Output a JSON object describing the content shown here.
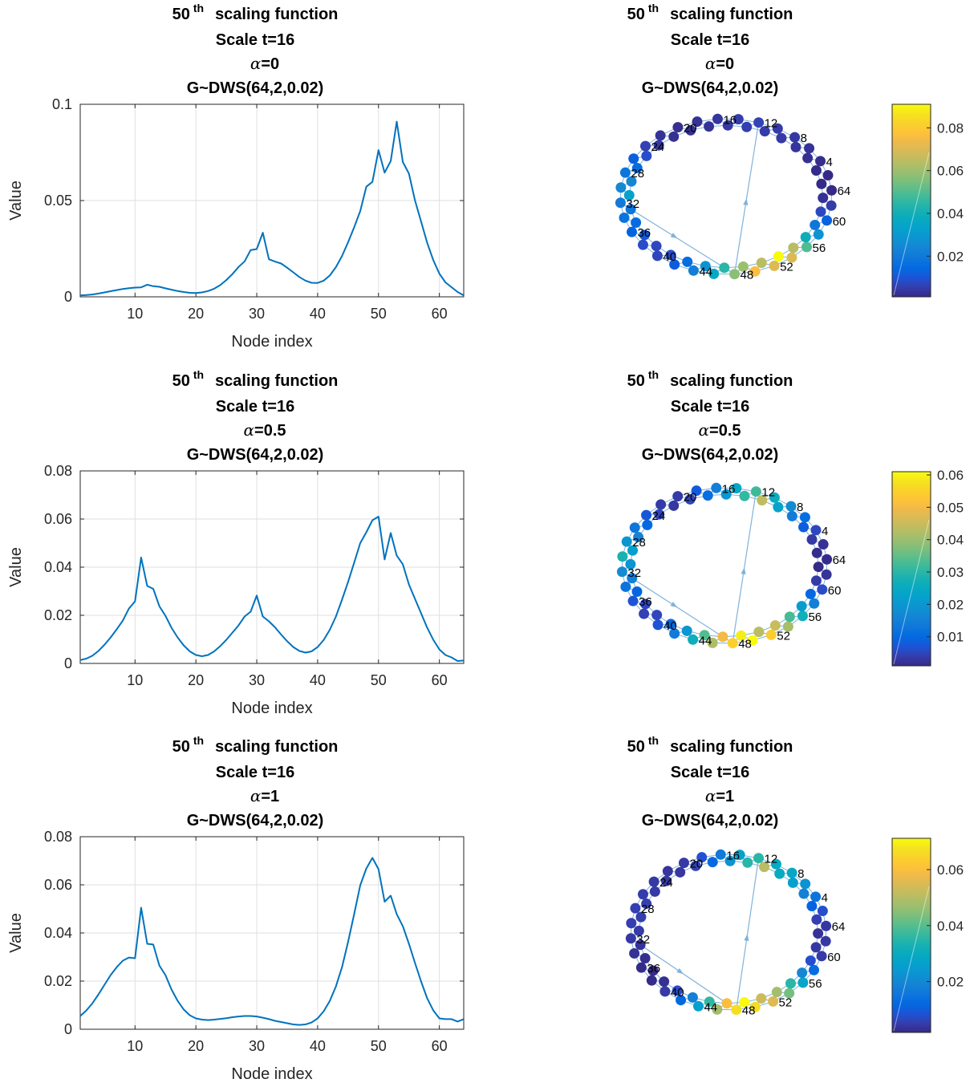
{
  "figure": {
    "rows": [
      {
        "title_lines": [
          "scaling function",
          "Scale t=16",
          "=0",
          "G~DWS(64,2,0.02)"
        ],
        "title_prefix": "50",
        "title_sup": "th",
        "alpha_symbol": "α",
        "alpha_value": "=0",
        "line_plot": {
          "title_prefix": "50",
          "title_sup": "th",
          "title_main": "scaling function",
          "title_scale": "Scale t=16",
          "alpha_symbol": "α",
          "alpha_value": "=0",
          "title_graph": "G~DWS(64,2,0.02)",
          "xlabel": "Node index",
          "ylabel": "Value",
          "yticks": [
            "0",
            "0.05",
            "0.1"
          ]
        },
        "graph_plot": {
          "title_prefix": "50",
          "title_sup": "th",
          "title_main": "scaling function",
          "title_scale": "Scale t=16",
          "alpha_symbol": "α",
          "alpha_value": "=0",
          "title_graph": "G~DWS(64,2,0.02)",
          "colorbar_ticks": [
            "0.02",
            "0.04",
            "0.06",
            "0.08"
          ]
        }
      },
      {
        "line_plot": {
          "title_prefix": "50",
          "title_sup": "th",
          "title_main": "scaling function",
          "title_scale": "Scale t=16",
          "alpha_symbol": "α",
          "alpha_value": "=0.5",
          "title_graph": "G~DWS(64,2,0.02)",
          "xlabel": "Node index",
          "ylabel": "Value",
          "yticks": [
            "0",
            "0.02",
            "0.04",
            "0.06",
            "0.08"
          ]
        },
        "graph_plot": {
          "title_prefix": "50",
          "title_sup": "th",
          "title_main": "scaling function",
          "title_scale": "Scale t=16",
          "alpha_symbol": "α",
          "alpha_value": "=0.5",
          "title_graph": "G~DWS(64,2,0.02)",
          "colorbar_ticks": [
            "0.01",
            "0.02",
            "0.03",
            "0.04",
            "0.05",
            "0.06"
          ]
        }
      },
      {
        "line_plot": {
          "title_prefix": "50",
          "title_sup": "th",
          "title_main": "scaling function",
          "title_scale": "Scale t=16",
          "alpha_symbol": "α",
          "alpha_value": "=1",
          "title_graph": "G~DWS(64,2,0.02)",
          "xlabel": "Node index",
          "ylabel": "Value",
          "yticks": [
            "0",
            "0.02",
            "0.04",
            "0.06",
            "0.08"
          ]
        },
        "graph_plot": {
          "title_prefix": "50",
          "title_sup": "th",
          "title_main": "scaling function",
          "title_scale": "Scale t=16",
          "alpha_symbol": "α",
          "alpha_value": "=1",
          "title_graph": "G~DWS(64,2,0.02)",
          "colorbar_ticks": [
            "0.02",
            "0.04",
            "0.06"
          ]
        }
      }
    ],
    "colors": {
      "line": "#0072bd",
      "edge": "#7fb3da",
      "axis": "#262626",
      "grid": "#dfdfdf"
    },
    "node_labels": [
      "4",
      "8",
      "12",
      "16",
      "20",
      "24",
      "28",
      "32",
      "36",
      "40",
      "44",
      "48",
      "52",
      "56",
      "60",
      "64"
    ]
  },
  "chart_data": [
    {
      "type": "line",
      "title": "50 th scaling function / Scale t=16 / α=0 / G~DWS(64,2,0.02)",
      "xlabel": "Node index",
      "ylabel": "Value",
      "xlim": [
        1,
        64
      ],
      "ylim": [
        0,
        0.1
      ],
      "grid": true,
      "xticks": [
        10,
        20,
        30,
        40,
        50,
        60
      ],
      "yticks": [
        0,
        0.05,
        0.1
      ],
      "x": [
        1,
        2,
        3,
        4,
        5,
        6,
        7,
        8,
        9,
        10,
        11,
        12,
        13,
        14,
        15,
        16,
        17,
        18,
        19,
        20,
        21,
        22,
        23,
        24,
        25,
        26,
        27,
        28,
        29,
        30,
        31,
        32,
        33,
        34,
        35,
        36,
        37,
        38,
        39,
        40,
        41,
        42,
        43,
        44,
        45,
        46,
        47,
        48,
        49,
        50,
        51,
        52,
        53,
        54,
        55,
        56,
        57,
        58,
        59,
        60,
        61,
        62,
        63,
        64
      ],
      "values": [
        0.0007,
        0.0009,
        0.0012,
        0.0017,
        0.0023,
        0.0029,
        0.0035,
        0.0041,
        0.0045,
        0.0048,
        0.0049,
        0.0063,
        0.0055,
        0.0052,
        0.0044,
        0.0037,
        0.003,
        0.0025,
        0.0021,
        0.002,
        0.0023,
        0.003,
        0.0042,
        0.0061,
        0.0087,
        0.0118,
        0.0155,
        0.0184,
        0.0243,
        0.0248,
        0.0333,
        0.0195,
        0.0183,
        0.0173,
        0.0151,
        0.0127,
        0.0103,
        0.0084,
        0.0073,
        0.0072,
        0.0084,
        0.0111,
        0.0154,
        0.0212,
        0.0283,
        0.0361,
        0.0445,
        0.0572,
        0.0597,
        0.0762,
        0.0645,
        0.0705,
        0.091,
        0.07,
        0.064,
        0.05,
        0.039,
        0.028,
        0.019,
        0.012,
        0.0075,
        0.005,
        0.0025,
        0.0007
      ]
    },
    {
      "type": "scatter",
      "title": "50 th scaling function / Scale t=16 / α=0 / G~DWS(64,2,0.02)",
      "colorbar_range": [
        0.001,
        0.091
      ],
      "colorbar_ticks": [
        0.02,
        0.04,
        0.06,
        0.08
      ],
      "node_index": [
        1,
        2,
        3,
        4,
        5,
        6,
        7,
        8,
        9,
        10,
        11,
        12,
        13,
        14,
        15,
        16,
        17,
        18,
        19,
        20,
        21,
        22,
        23,
        24,
        25,
        26,
        27,
        28,
        29,
        30,
        31,
        32,
        33,
        34,
        35,
        36,
        37,
        38,
        39,
        40,
        41,
        42,
        43,
        44,
        45,
        46,
        47,
        48,
        49,
        50,
        51,
        52,
        53,
        54,
        55,
        56,
        57,
        58,
        59,
        60,
        61,
        62,
        63,
        64
      ],
      "values": [
        0.0007,
        0.0009,
        0.0012,
        0.0017,
        0.0023,
        0.0029,
        0.0035,
        0.0041,
        0.0045,
        0.0048,
        0.0049,
        0.0063,
        0.0055,
        0.0052,
        0.0044,
        0.0037,
        0.003,
        0.0025,
        0.0021,
        0.002,
        0.0023,
        0.003,
        0.0042,
        0.0061,
        0.0087,
        0.0118,
        0.0155,
        0.0184,
        0.0243,
        0.0248,
        0.0333,
        0.0195,
        0.0183,
        0.0173,
        0.0151,
        0.0127,
        0.0103,
        0.0084,
        0.0073,
        0.0072,
        0.0084,
        0.0111,
        0.0154,
        0.0212,
        0.0283,
        0.0361,
        0.0445,
        0.0572,
        0.0597,
        0.0762,
        0.0645,
        0.0705,
        0.091,
        0.07,
        0.064,
        0.05,
        0.039,
        0.028,
        0.019,
        0.012,
        0.0075,
        0.005,
        0.0025,
        0.0007
      ],
      "extra_edges": [
        [
          32,
          48
        ],
        [
          48,
          12
        ]
      ]
    },
    {
      "type": "line",
      "title": "50 th scaling function / Scale t=16 / α=0.5 / G~DWS(64,2,0.02)",
      "xlabel": "Node index",
      "ylabel": "Value",
      "xlim": [
        1,
        64
      ],
      "ylim": [
        0,
        0.08
      ],
      "grid": true,
      "xticks": [
        10,
        20,
        30,
        40,
        50,
        60
      ],
      "yticks": [
        0,
        0.02,
        0.04,
        0.06,
        0.08
      ],
      "x": [
        1,
        2,
        3,
        4,
        5,
        6,
        7,
        8,
        9,
        10,
        11,
        12,
        13,
        14,
        15,
        16,
        17,
        18,
        19,
        20,
        21,
        22,
        23,
        24,
        25,
        26,
        27,
        28,
        29,
        30,
        31,
        32,
        33,
        34,
        35,
        36,
        37,
        38,
        39,
        40,
        41,
        42,
        43,
        44,
        45,
        46,
        47,
        48,
        49,
        50,
        51,
        52,
        53,
        54,
        55,
        56,
        57,
        58,
        59,
        60,
        61,
        62,
        63,
        64
      ],
      "values": [
        0.0014,
        0.002,
        0.0032,
        0.0052,
        0.0078,
        0.0108,
        0.0142,
        0.0178,
        0.0228,
        0.0258,
        0.044,
        0.0322,
        0.031,
        0.0238,
        0.0198,
        0.0148,
        0.0108,
        0.0075,
        0.005,
        0.0035,
        0.003,
        0.0035,
        0.005,
        0.0072,
        0.0098,
        0.0128,
        0.0158,
        0.0195,
        0.0215,
        0.0282,
        0.0195,
        0.0175,
        0.015,
        0.012,
        0.0092,
        0.0068,
        0.0052,
        0.0045,
        0.005,
        0.0068,
        0.0098,
        0.014,
        0.0195,
        0.0265,
        0.0338,
        0.0418,
        0.05,
        0.0545,
        0.0595,
        0.061,
        0.0432,
        0.0542,
        0.0448,
        0.0412,
        0.0328,
        0.0268,
        0.0208,
        0.0148,
        0.0098,
        0.0058,
        0.0035,
        0.0025,
        0.001,
        0.0012
      ]
    },
    {
      "type": "scatter",
      "title": "50 th scaling function / Scale t=16 / α=0.5 / G~DWS(64,2,0.02)",
      "colorbar_range": [
        0.001,
        0.061
      ],
      "colorbar_ticks": [
        0.01,
        0.02,
        0.03,
        0.04,
        0.05,
        0.06
      ],
      "node_index": [
        1,
        2,
        3,
        4,
        5,
        6,
        7,
        8,
        9,
        10,
        11,
        12,
        13,
        14,
        15,
        16,
        17,
        18,
        19,
        20,
        21,
        22,
        23,
        24,
        25,
        26,
        27,
        28,
        29,
        30,
        31,
        32,
        33,
        34,
        35,
        36,
        37,
        38,
        39,
        40,
        41,
        42,
        43,
        44,
        45,
        46,
        47,
        48,
        49,
        50,
        51,
        52,
        53,
        54,
        55,
        56,
        57,
        58,
        59,
        60,
        61,
        62,
        63,
        64
      ],
      "values": [
        0.0014,
        0.002,
        0.0032,
        0.0052,
        0.0078,
        0.0108,
        0.0142,
        0.0178,
        0.0228,
        0.0258,
        0.044,
        0.0322,
        0.031,
        0.0238,
        0.0198,
        0.0148,
        0.0108,
        0.0075,
        0.005,
        0.0035,
        0.003,
        0.0035,
        0.005,
        0.0072,
        0.0098,
        0.0128,
        0.0158,
        0.0195,
        0.0215,
        0.0282,
        0.0195,
        0.0175,
        0.015,
        0.012,
        0.0092,
        0.0068,
        0.0052,
        0.0045,
        0.005,
        0.0068,
        0.0098,
        0.014,
        0.0195,
        0.0265,
        0.0338,
        0.0418,
        0.05,
        0.0545,
        0.0595,
        0.061,
        0.0432,
        0.0542,
        0.0448,
        0.0412,
        0.0328,
        0.0268,
        0.0208,
        0.0148,
        0.0098,
        0.0058,
        0.0035,
        0.0025,
        0.001,
        0.0012
      ],
      "extra_edges": [
        [
          32,
          48
        ],
        [
          48,
          12
        ]
      ]
    },
    {
      "type": "line",
      "title": "50 th scaling function / Scale t=16 / α=1 / G~DWS(64,2,0.02)",
      "xlabel": "Node index",
      "ylabel": "Value",
      "xlim": [
        1,
        64
      ],
      "ylim": [
        0,
        0.08
      ],
      "grid": true,
      "xticks": [
        10,
        20,
        30,
        40,
        50,
        60
      ],
      "yticks": [
        0,
        0.02,
        0.04,
        0.06,
        0.08
      ],
      "x": [
        1,
        2,
        3,
        4,
        5,
        6,
        7,
        8,
        9,
        10,
        11,
        12,
        13,
        14,
        15,
        16,
        17,
        18,
        19,
        20,
        21,
        22,
        23,
        24,
        25,
        26,
        27,
        28,
        29,
        30,
        31,
        32,
        33,
        34,
        35,
        36,
        37,
        38,
        39,
        40,
        41,
        42,
        43,
        44,
        45,
        46,
        47,
        48,
        49,
        50,
        51,
        52,
        53,
        54,
        55,
        56,
        57,
        58,
        59,
        60,
        61,
        62,
        63,
        64
      ],
      "values": [
        0.0055,
        0.0078,
        0.0108,
        0.0145,
        0.0185,
        0.0225,
        0.0258,
        0.0285,
        0.0298,
        0.0295,
        0.0505,
        0.0355,
        0.0352,
        0.0265,
        0.0225,
        0.0165,
        0.0118,
        0.0082,
        0.0058,
        0.0045,
        0.004,
        0.0038,
        0.004,
        0.0043,
        0.0046,
        0.005,
        0.0053,
        0.0055,
        0.0055,
        0.0053,
        0.0048,
        0.0042,
        0.0035,
        0.003,
        0.0025,
        0.002,
        0.0018,
        0.002,
        0.0028,
        0.0045,
        0.0075,
        0.0118,
        0.0178,
        0.0258,
        0.0362,
        0.0478,
        0.0598,
        0.0668,
        0.0712,
        0.0665,
        0.053,
        0.0555,
        0.0478,
        0.0428,
        0.0355,
        0.0275,
        0.0198,
        0.0128,
        0.0078,
        0.0045,
        0.0042,
        0.0042,
        0.0032,
        0.0042
      ]
    },
    {
      "type": "scatter",
      "title": "50 th scaling function / Scale t=16 / α=1 / G~DWS(64,2,0.02)",
      "colorbar_range": [
        0.0018,
        0.0712
      ],
      "colorbar_ticks": [
        0.02,
        0.04,
        0.06
      ],
      "node_index": [
        1,
        2,
        3,
        4,
        5,
        6,
        7,
        8,
        9,
        10,
        11,
        12,
        13,
        14,
        15,
        16,
        17,
        18,
        19,
        20,
        21,
        22,
        23,
        24,
        25,
        26,
        27,
        28,
        29,
        30,
        31,
        32,
        33,
        34,
        35,
        36,
        37,
        38,
        39,
        40,
        41,
        42,
        43,
        44,
        45,
        46,
        47,
        48,
        49,
        50,
        51,
        52,
        53,
        54,
        55,
        56,
        57,
        58,
        59,
        60,
        61,
        62,
        63,
        64
      ],
      "values": [
        0.0055,
        0.0078,
        0.0108,
        0.0145,
        0.0185,
        0.0225,
        0.0258,
        0.0285,
        0.0298,
        0.0295,
        0.0505,
        0.0355,
        0.0352,
        0.0265,
        0.0225,
        0.0165,
        0.0118,
        0.0082,
        0.0058,
        0.0045,
        0.004,
        0.0038,
        0.004,
        0.0043,
        0.0046,
        0.005,
        0.0053,
        0.0055,
        0.0055,
        0.0053,
        0.0048,
        0.0042,
        0.0035,
        0.003,
        0.0025,
        0.002,
        0.0018,
        0.002,
        0.0028,
        0.0045,
        0.0075,
        0.0118,
        0.0178,
        0.0258,
        0.0362,
        0.0478,
        0.0598,
        0.0668,
        0.0712,
        0.0665,
        0.053,
        0.0555,
        0.0478,
        0.0428,
        0.0355,
        0.0275,
        0.0198,
        0.0128,
        0.0078,
        0.0045,
        0.0042,
        0.0042,
        0.0032,
        0.0042
      ],
      "extra_edges": [
        [
          32,
          48
        ],
        [
          48,
          12
        ]
      ]
    }
  ]
}
